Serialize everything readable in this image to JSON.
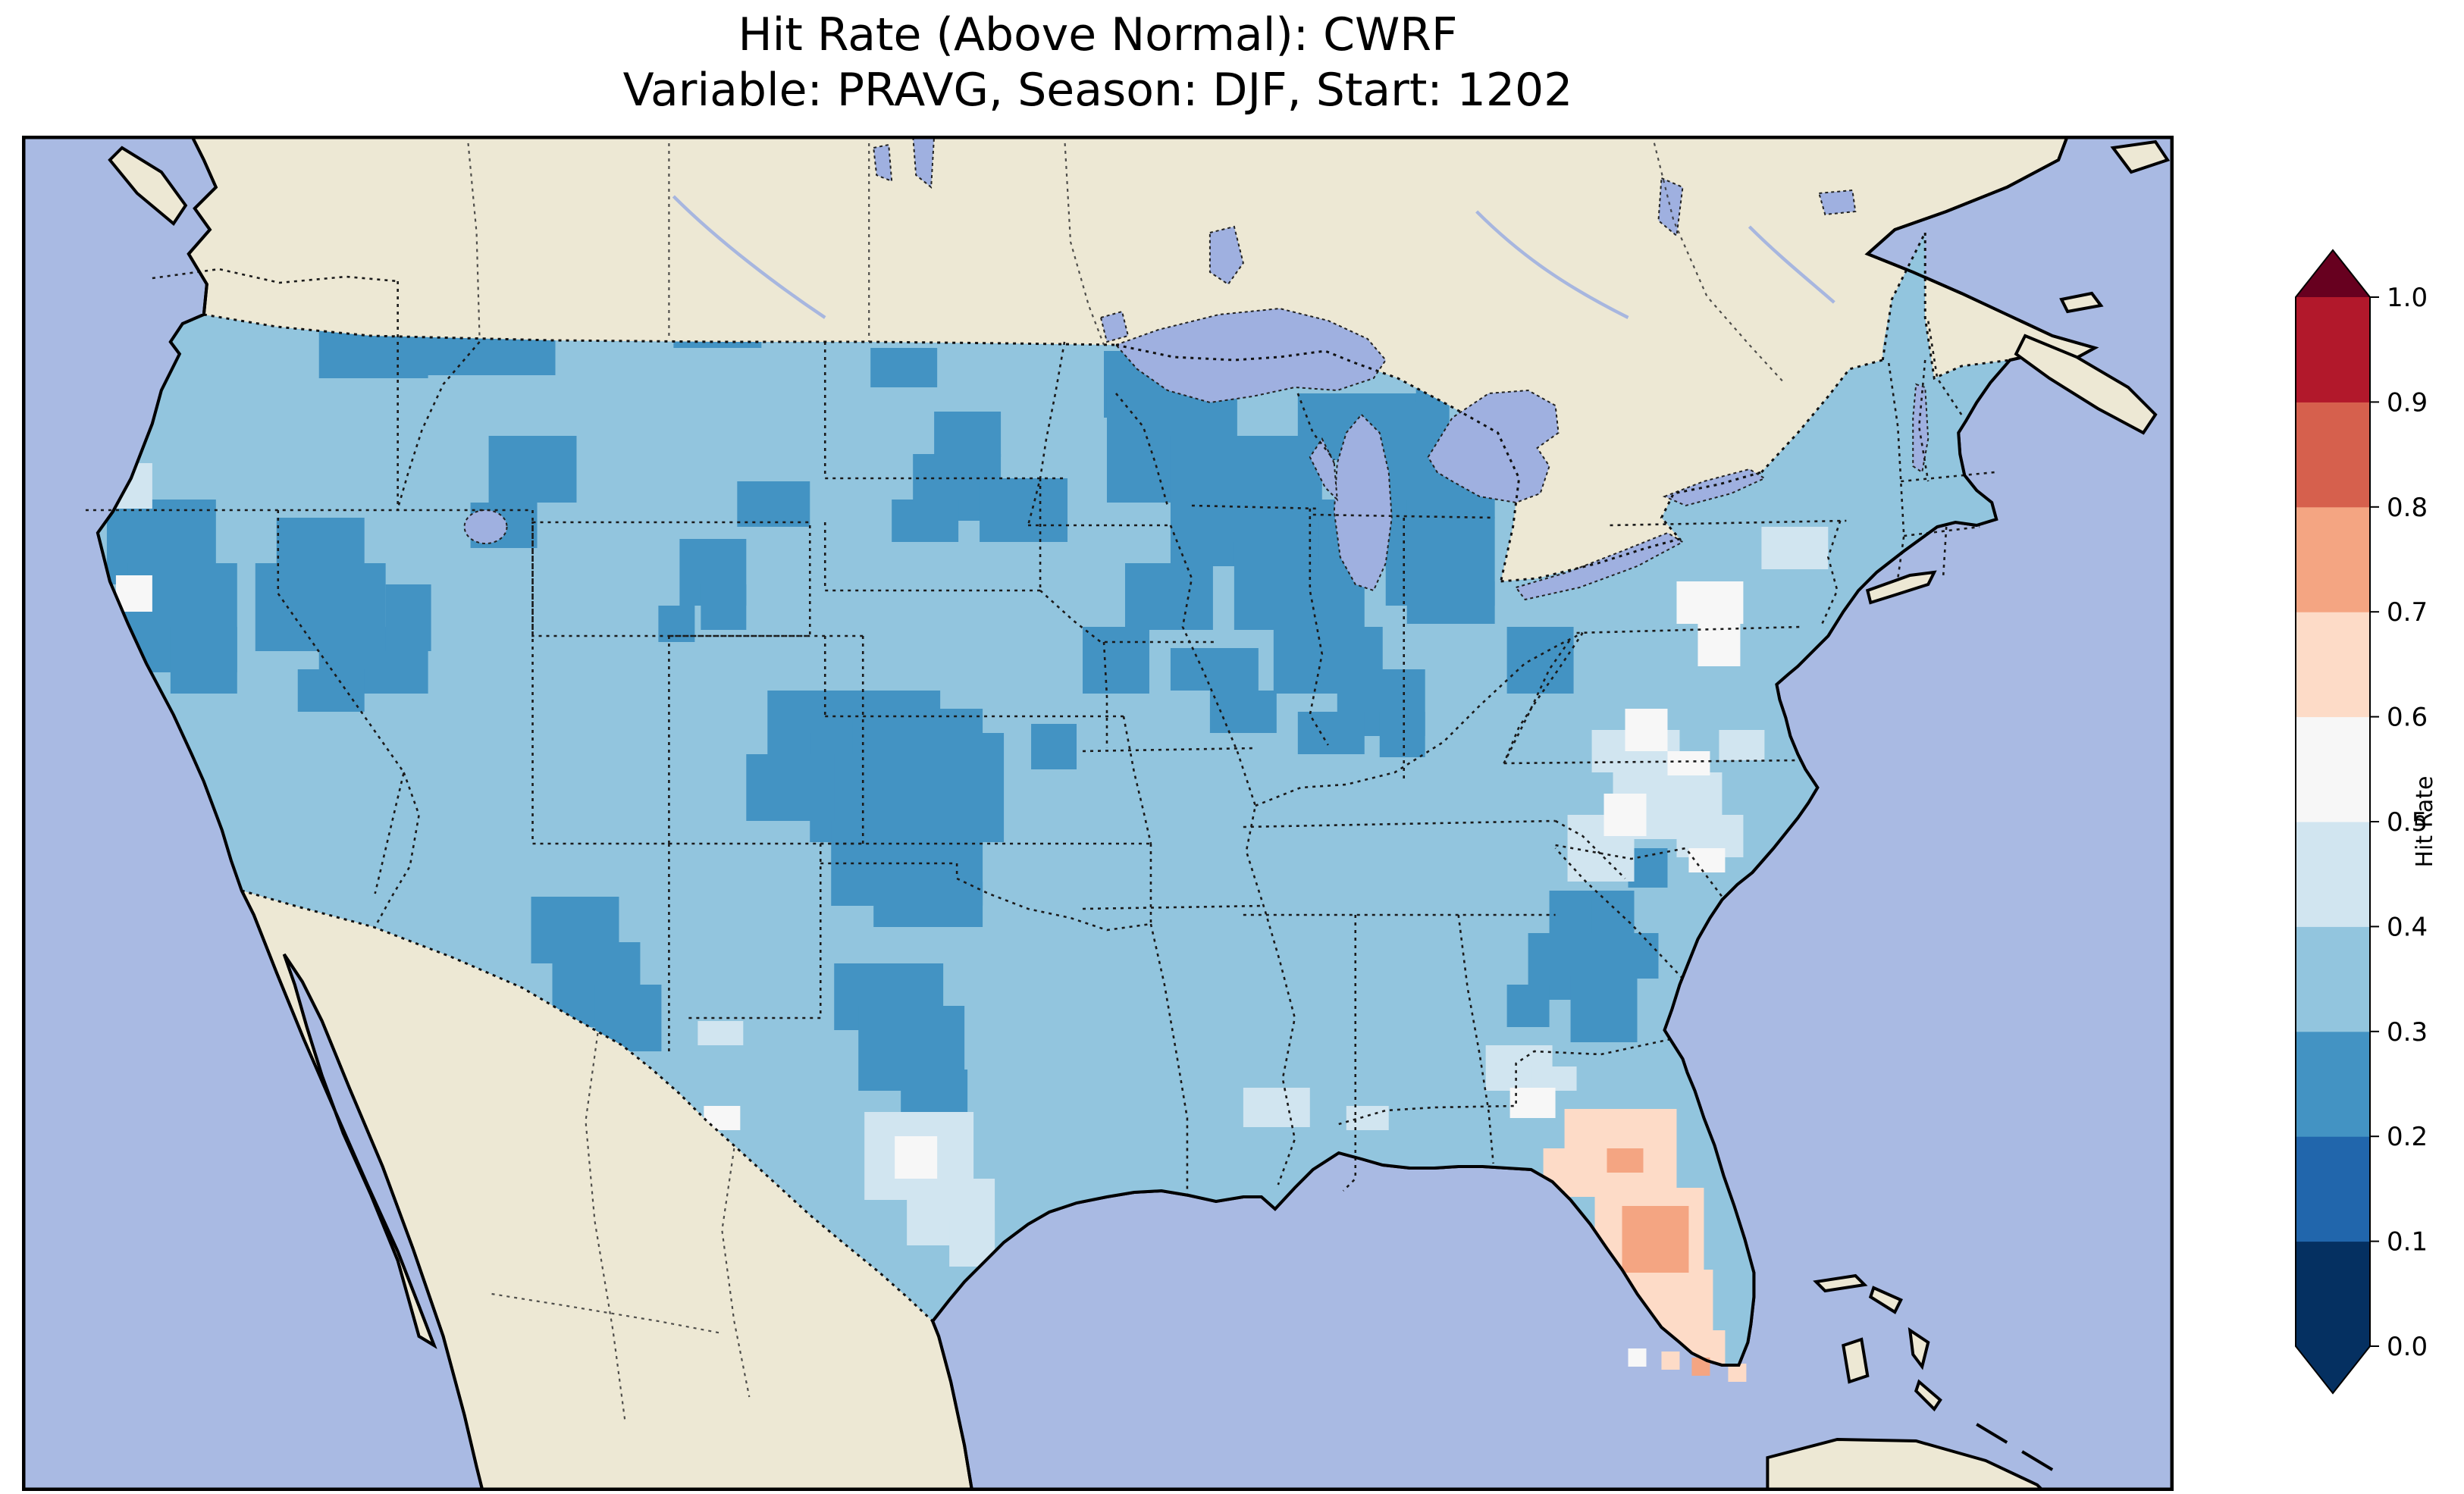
{
  "title": {
    "line1": "Hit Rate (Above Normal): CWRF",
    "line2": "Variable: PRAVG, Season: DJF, Start: 1202"
  },
  "chart_data": {
    "type": "heatmap",
    "subtype": "geographic-gridded-choropleth",
    "title": "Hit Rate (Above Normal): CWRF",
    "subtitle": "Variable: PRAVG, Season: DJF, Start: 1202",
    "model": "CWRF",
    "metric": "Hit Rate (Above Normal)",
    "variable": "PRAVG",
    "season": "DJF",
    "start": "1202",
    "region": "Contiguous United States",
    "colorbar": {
      "label": "Hit Rate",
      "orientation": "vertical",
      "extend": "both",
      "tick_labels": [
        "0.0",
        "0.1",
        "0.2",
        "0.3",
        "0.4",
        "0.5",
        "0.6",
        "0.7",
        "0.8",
        "0.9",
        "1.0"
      ],
      "bin_edges": [
        0.0,
        0.1,
        0.2,
        0.3,
        0.4,
        0.5,
        0.6,
        0.7,
        0.8,
        0.9,
        1.0
      ],
      "bin_colors": [
        "#053061",
        "#2166ac",
        "#4393c3",
        "#92c5de",
        "#d1e5f0",
        "#f7f7f7",
        "#fddbc7",
        "#f4a582",
        "#d6604d",
        "#b2182b"
      ],
      "under_color": "#053061",
      "over_color": "#67001f"
    },
    "map": {
      "ocean_color": "#a9bae3",
      "land_color": "#ede8d4",
      "lake_color": "#9fb0e0",
      "river_color": "#9fb0e0",
      "base_color": "#92c5de",
      "coast_color": "#000000"
    },
    "summary": [
      {
        "region": "Most of the contiguous US",
        "hit_rate_bin": "0.3-0.4"
      },
      {
        "region": "Pacific Northwest, northern Rockies/Montana, Upper Midwest and Great Lakes states, Kansas-Oklahoma-Texas panhandle, Nevada-Utah, central Texas, New Mexico, Georgia",
        "hit_rate_bin": "0.2-0.3"
      },
      {
        "region": "Coastal Virginia and the Carolinas, south Texas, north Florida, northwest Nevada, southwest New Mexico",
        "hit_rate_bin": "0.4-0.6"
      },
      {
        "region": "Florida peninsula and Keys",
        "hit_rate_bin": "0.6-0.8"
      }
    ],
    "cells": [
      [
        96,
        10,
        60,
        54,
        2
      ],
      [
        110,
        52,
        46,
        58,
        2
      ],
      [
        82,
        22,
        30,
        44,
        2
      ],
      [
        200,
        28,
        116,
        88,
        2
      ],
      [
        284,
        58,
        144,
        72,
        2
      ],
      [
        252,
        100,
        100,
        58,
        2
      ],
      [
        368,
        44,
        58,
        72,
        2
      ],
      [
        328,
        16,
        72,
        44,
        2
      ],
      [
        430,
        96,
        58,
        44,
        2
      ],
      [
        196,
        116,
        72,
        44,
        2
      ],
      [
        472,
        60,
        44,
        30,
        2
      ],
      [
        472,
        228,
        48,
        30,
        2
      ],
      [
        56,
        240,
        72,
        56,
        2
      ],
      [
        70,
        282,
        72,
        72,
        2
      ],
      [
        98,
        324,
        44,
        44,
        2
      ],
      [
        44,
        312,
        26,
        28,
        2
      ],
      [
        168,
        252,
        58,
        44,
        2
      ],
      [
        154,
        282,
        86,
        58,
        2
      ],
      [
        196,
        324,
        72,
        44,
        2
      ],
      [
        182,
        352,
        44,
        28,
        2
      ],
      [
        240,
        296,
        30,
        44,
        2
      ],
      [
        308,
        198,
        58,
        44,
        2
      ],
      [
        296,
        242,
        44,
        30,
        2
      ],
      [
        434,
        266,
        44,
        44,
        2
      ],
      [
        448,
        296,
        30,
        30,
        2
      ],
      [
        420,
        310,
        24,
        24,
        2
      ],
      [
        492,
        366,
        114,
        58,
        2
      ],
      [
        520,
        394,
        128,
        72,
        2
      ],
      [
        534,
        450,
        100,
        58,
        2
      ],
      [
        562,
        492,
        72,
        30,
        2
      ],
      [
        478,
        408,
        58,
        44,
        2
      ],
      [
        548,
        378,
        86,
        30,
        2
      ],
      [
        336,
        502,
        58,
        44,
        2
      ],
      [
        350,
        532,
        58,
        56,
        2
      ],
      [
        378,
        560,
        44,
        44,
        2
      ],
      [
        536,
        546,
        72,
        44,
        2
      ],
      [
        552,
        574,
        70,
        56,
        2
      ],
      [
        580,
        616,
        44,
        30,
        2
      ],
      [
        588,
        210,
        58,
        44,
        2
      ],
      [
        632,
        226,
        58,
        42,
        2
      ],
      [
        574,
        240,
        44,
        28,
        2
      ],
      [
        560,
        140,
        44,
        26,
        2
      ],
      [
        602,
        182,
        44,
        30,
        2
      ],
      [
        714,
        142,
        58,
        44,
        2
      ],
      [
        716,
        170,
        86,
        72,
        2
      ],
      [
        758,
        198,
        100,
        86,
        2
      ],
      [
        800,
        268,
        86,
        58,
        2
      ],
      [
        842,
        170,
        100,
        44,
        2
      ],
      [
        900,
        210,
        72,
        100,
        2
      ],
      [
        914,
        294,
        58,
        28,
        2
      ],
      [
        856,
        240,
        58,
        44,
        2
      ],
      [
        920,
        140,
        56,
        36,
        2
      ],
      [
        728,
        282,
        58,
        44,
        2
      ],
      [
        700,
        324,
        44,
        44,
        2
      ],
      [
        758,
        338,
        58,
        28,
        2
      ],
      [
        784,
        366,
        44,
        28,
        2
      ],
      [
        666,
        388,
        30,
        30,
        2
      ],
      [
        826,
        324,
        72,
        44,
        2
      ],
      [
        868,
        352,
        58,
        44,
        2
      ],
      [
        842,
        380,
        44,
        28,
        2
      ],
      [
        896,
        380,
        30,
        30,
        2
      ],
      [
        980,
        324,
        44,
        44,
        2
      ],
      [
        1022,
        254,
        44,
        28,
        2
      ],
      [
        1008,
        498,
        44,
        44,
        2
      ],
      [
        994,
        526,
        58,
        44,
        2
      ],
      [
        1022,
        554,
        44,
        44,
        2
      ],
      [
        1050,
        526,
        30,
        30,
        2
      ],
      [
        980,
        560,
        28,
        28,
        2
      ],
      [
        1036,
        498,
        28,
        28,
        2
      ],
      [
        1060,
        470,
        26,
        26,
        2
      ],
      [
        608,
        700,
        30,
        30,
        2
      ],
      [
        556,
        644,
        72,
        58,
        4
      ],
      [
        584,
        688,
        58,
        44,
        4
      ],
      [
        612,
        716,
        30,
        30,
        4
      ],
      [
        806,
        628,
        44,
        26,
        4
      ],
      [
        1036,
        392,
        58,
        28,
        4
      ],
      [
        1050,
        420,
        72,
        44,
        4
      ],
      [
        1020,
        448,
        44,
        44,
        4
      ],
      [
        1092,
        448,
        44,
        28,
        4
      ],
      [
        1120,
        392,
        30,
        20,
        4
      ],
      [
        966,
        600,
        44,
        30,
        4
      ],
      [
        996,
        614,
        30,
        16,
        4
      ],
      [
        446,
        584,
        30,
        16,
        4
      ],
      [
        56,
        216,
        30,
        30,
        4
      ],
      [
        874,
        640,
        28,
        16,
        4
      ],
      [
        1148,
        258,
        44,
        28,
        4
      ],
      [
        1058,
        378,
        28,
        28,
        5
      ],
      [
        1086,
        406,
        28,
        16,
        5
      ],
      [
        1044,
        434,
        28,
        28,
        5
      ],
      [
        1100,
        470,
        24,
        16,
        5
      ],
      [
        1092,
        294,
        44,
        28,
        5
      ],
      [
        1106,
        322,
        28,
        28,
        5
      ],
      [
        62,
        290,
        24,
        24,
        5
      ],
      [
        576,
        660,
        28,
        28,
        5
      ],
      [
        982,
        628,
        30,
        20,
        5
      ],
      [
        450,
        640,
        24,
        16,
        5
      ],
      [
        1018,
        642,
        74,
        58,
        6
      ],
      [
        1038,
        694,
        72,
        58,
        6
      ],
      [
        1058,
        748,
        58,
        44,
        6
      ],
      [
        1080,
        788,
        44,
        24,
        6
      ],
      [
        1004,
        668,
        28,
        28,
        6
      ],
      [
        1056,
        706,
        44,
        44,
        7
      ],
      [
        1046,
        668,
        24,
        16,
        7
      ]
    ],
    "cells_offshore": [
      [
        1060,
        800,
        12,
        12,
        5
      ],
      [
        1082,
        802,
        12,
        12,
        6
      ],
      [
        1102,
        806,
        12,
        12,
        7
      ],
      [
        1126,
        810,
        12,
        12,
        6
      ]
    ]
  }
}
